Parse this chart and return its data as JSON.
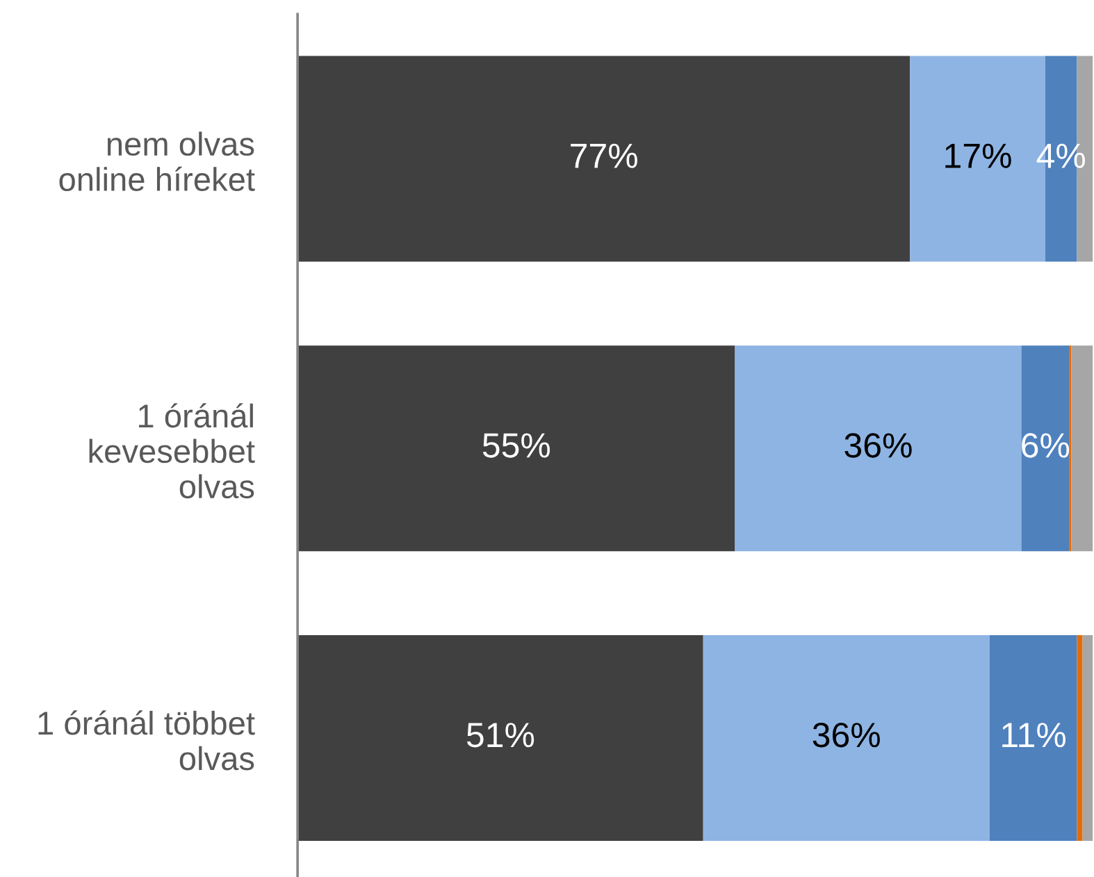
{
  "chart_data": {
    "type": "bar",
    "orientation": "horizontal",
    "stacked": true,
    "categories": [
      "nem olvas\nonline híreket",
      "1 óránál\nkevesebbet\nolvas",
      "1 óránál többet\nolvas"
    ],
    "xlim": [
      0,
      100
    ],
    "tick_labels": "y",
    "grid": false,
    "legend": false,
    "series": [
      {
        "color": "#404040",
        "values": [
          77,
          55,
          51
        ],
        "value_labels": [
          "77%",
          "55%",
          "51%"
        ]
      },
      {
        "color": "#8eb4e3",
        "values": [
          17,
          36,
          36
        ],
        "value_labels": [
          "17%",
          "36%",
          "36%"
        ]
      },
      {
        "color": "#4f81bd",
        "values": [
          4,
          6,
          11
        ],
        "value_labels": [
          "4%",
          "6%",
          "11%"
        ]
      },
      {
        "color": "#e36c0a",
        "values": [
          0,
          0.3,
          0.7
        ],
        "value_labels": [
          null,
          null,
          null
        ]
      },
      {
        "color": "#a6a6a6",
        "values": [
          2,
          2.7,
          1.3
        ],
        "value_labels": [
          null,
          null,
          null
        ]
      }
    ]
  }
}
